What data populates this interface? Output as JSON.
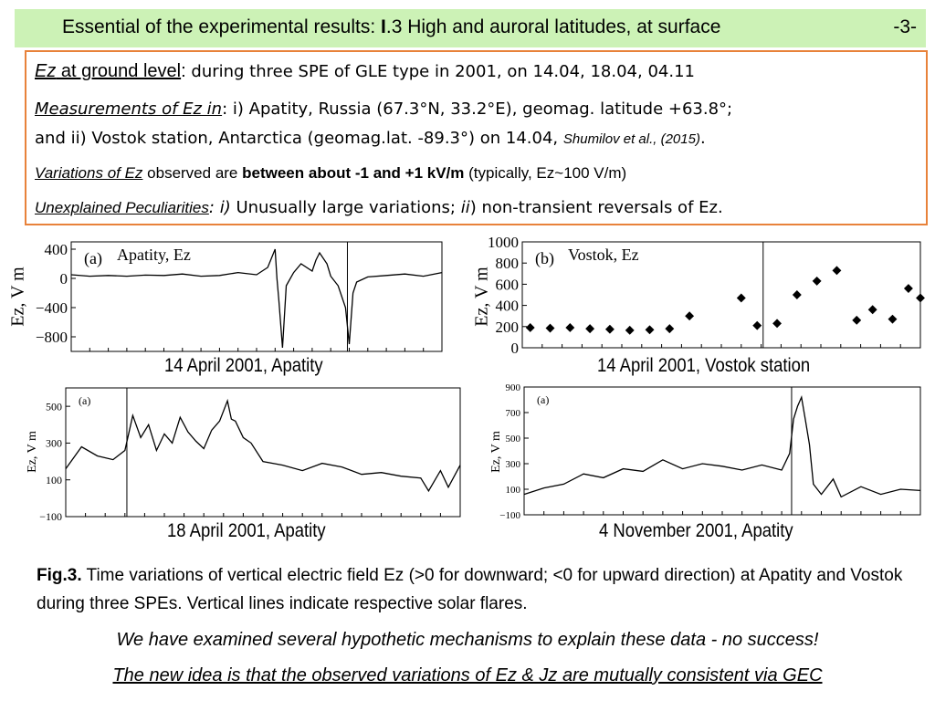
{
  "header": {
    "title_prefix": "Essential of the experimental results: ",
    "title_roman": "I",
    "title_rest": ".3 High and auroral latitudes, at surface",
    "page_number": "-3-"
  },
  "summary": {
    "l1_ez": "Ez",
    "l1_label": " at ground level",
    "l1_colon": ":",
    "l1_text": " during three SPE of GLE type in 2001, on 14.04, 18.04, 04.11",
    "l2_label": "Measurements of Ez in",
    "l2_text": ":    i) Apatity, Russia (67.3°N, 33.2°E), geomag. latitude +63.8°;",
    "l3_text": "and ii) Vostok station, Antarctica (geomag.lat. -89.3°) on 14.04, ",
    "l3_ref": "Shumilov et al., (2015)",
    "l3_end": ".",
    "l4_label": "Variations of Ez",
    "l4_text1": " observed are ",
    "l4_bold": "between about -1 and +1 kV/m",
    "l4_text2": " (typically, Ez~100 V/m)",
    "l5_label": "Unexplained Peculiarities",
    "l5_colon": ":",
    "l5_i": "   i)",
    "l5_text1": " Unusually large variations;  ",
    "l5_ii": " ii",
    "l5_text2": ") non-transient reversals of Ez."
  },
  "captions": {
    "c1": "14 April 2001, Apatity",
    "c2": "14 April 2001, Vostok station",
    "c3": "18 April 2001, Apatity",
    "c4": "4 November 2001, Apatity"
  },
  "figure_caption": {
    "label": "Fig.3.",
    "text": " Time variations of vertical electric field Ez (>0 for downward; <0 for upward direction) at Apatity and Vostok  during three SPEs. Vertical lines indicate respective solar flares."
  },
  "footer": {
    "line1": "We have examined several hypothetic mechanisms to explain these data - no success!",
    "line2": "The new idea is that the observed variations of Ez & Jz are mutually consistent via GEC"
  },
  "chart_data": [
    {
      "type": "line",
      "panel_label": "(a)",
      "inner_title": "Apatity, Ez",
      "ylabel": "Ez, V m",
      "yticks": [
        400,
        0,
        -400,
        -800
      ],
      "ylim": [
        -1000,
        500
      ],
      "xlim": [
        0,
        1
      ],
      "flare_x": 0.745,
      "series": [
        {
          "color": "#000000",
          "x": [
            0,
            0.05,
            0.1,
            0.15,
            0.2,
            0.25,
            0.3,
            0.35,
            0.4,
            0.45,
            0.5,
            0.53,
            0.55,
            0.555,
            0.56,
            0.57,
            0.58,
            0.6,
            0.62,
            0.65,
            0.66,
            0.67,
            0.69,
            0.7,
            0.72,
            0.74,
            0.75,
            0.76,
            0.77,
            0.8,
            0.85,
            0.9,
            0.95,
            1
          ],
          "y": [
            50,
            30,
            40,
            30,
            45,
            40,
            60,
            30,
            40,
            80,
            50,
            150,
            400,
            0,
            -300,
            -950,
            -100,
            80,
            200,
            100,
            250,
            350,
            200,
            30,
            -100,
            -400,
            -900,
            -200,
            -50,
            20,
            40,
            60,
            30,
            80
          ]
        }
      ]
    },
    {
      "type": "scatter",
      "panel_label": "(b)",
      "inner_title": "Vostok, Ez",
      "ylabel": "Ez, V m",
      "yticks": [
        1000,
        800,
        600,
        400,
        200,
        0
      ],
      "ylim": [
        0,
        1000
      ],
      "xlim": [
        0,
        1
      ],
      "flare_x": 0.605,
      "series": [
        {
          "color": "#000000",
          "x": [
            0.02,
            0.07,
            0.12,
            0.17,
            0.22,
            0.27,
            0.32,
            0.37,
            0.42,
            0.55,
            0.59,
            0.64,
            0.69,
            0.74,
            0.79,
            0.84,
            0.88,
            0.93,
            0.97,
            1.0
          ],
          "y": [
            190,
            185,
            190,
            180,
            175,
            165,
            170,
            180,
            300,
            470,
            210,
            230,
            500,
            630,
            730,
            260,
            360,
            270,
            560,
            470
          ]
        }
      ]
    },
    {
      "type": "line",
      "panel_label": "(a)",
      "ylabel": "Ez, V m",
      "yticks": [
        500,
        300,
        100,
        -100
      ],
      "ylim": [
        -100,
        600
      ],
      "xlim": [
        0,
        1
      ],
      "flare_x": 0.155,
      "series": [
        {
          "color": "#000000",
          "x": [
            0,
            0.04,
            0.08,
            0.12,
            0.15,
            0.17,
            0.19,
            0.21,
            0.23,
            0.25,
            0.27,
            0.29,
            0.31,
            0.33,
            0.35,
            0.37,
            0.39,
            0.41,
            0.42,
            0.43,
            0.45,
            0.47,
            0.5,
            0.55,
            0.6,
            0.65,
            0.7,
            0.75,
            0.8,
            0.85,
            0.9,
            0.92,
            0.95,
            0.97,
            1
          ],
          "y": [
            160,
            280,
            230,
            210,
            260,
            450,
            330,
            400,
            260,
            350,
            300,
            440,
            360,
            310,
            270,
            370,
            420,
            530,
            430,
            420,
            330,
            300,
            200,
            180,
            150,
            190,
            170,
            130,
            140,
            120,
            110,
            40,
            150,
            60,
            180
          ]
        }
      ]
    },
    {
      "type": "line",
      "panel_label": "(a)",
      "ylabel": "Ez, V m",
      "yticks": [
        900,
        700,
        500,
        300,
        100,
        -100
      ],
      "ylim": [
        -100,
        900
      ],
      "xlim": [
        0,
        1
      ],
      "flare_x": 0.675,
      "series": [
        {
          "color": "#000000",
          "x": [
            0,
            0.05,
            0.1,
            0.15,
            0.2,
            0.25,
            0.3,
            0.35,
            0.4,
            0.45,
            0.5,
            0.55,
            0.6,
            0.65,
            0.67,
            0.68,
            0.69,
            0.7,
            0.71,
            0.72,
            0.73,
            0.75,
            0.78,
            0.8,
            0.85,
            0.9,
            0.95,
            1
          ],
          "y": [
            60,
            110,
            140,
            220,
            190,
            260,
            240,
            330,
            260,
            300,
            280,
            250,
            290,
            250,
            380,
            650,
            750,
            820,
            640,
            450,
            140,
            60,
            180,
            40,
            120,
            60,
            100,
            90
          ]
        }
      ]
    }
  ]
}
